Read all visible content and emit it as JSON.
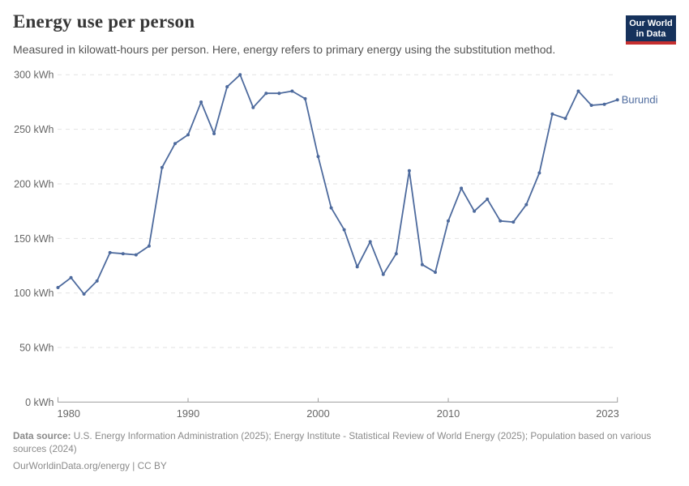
{
  "header": {
    "title": "Energy use per person",
    "subtitle": "Measured in kilowatt-hours per person. Here, energy refers to primary energy using the substitution method."
  },
  "logo": {
    "line1": "Our World",
    "line2": "in Data",
    "bg_color": "#16325c",
    "bar_color": "#c62f2f",
    "text_color": "#ffffff"
  },
  "chart_data": {
    "type": "line",
    "title": "Energy use per person",
    "unit": "kWh",
    "xlabel": "",
    "ylabel": "",
    "xlim": [
      1980,
      2023
    ],
    "ylim": [
      0,
      300
    ],
    "x_ticks": [
      1980,
      1990,
      2000,
      2010,
      2023
    ],
    "y_ticks": [
      0,
      50,
      100,
      150,
      200,
      250,
      300
    ],
    "y_tick_suffix": " kWh",
    "grid": "horizontal-dashed",
    "legend_position": "end-of-line-label",
    "entity_label": "Burundi",
    "series": [
      {
        "name": "Burundi",
        "color": "#4d6a9d",
        "x": [
          1980,
          1981,
          1982,
          1983,
          1984,
          1985,
          1986,
          1987,
          1988,
          1989,
          1990,
          1991,
          1992,
          1993,
          1994,
          1995,
          1996,
          1997,
          1998,
          1999,
          2000,
          2001,
          2002,
          2003,
          2004,
          2005,
          2006,
          2007,
          2008,
          2009,
          2010,
          2011,
          2012,
          2013,
          2014,
          2015,
          2016,
          2017,
          2018,
          2019,
          2020,
          2021,
          2022,
          2023
        ],
        "values": [
          105,
          114,
          99,
          111,
          137,
          136,
          135,
          143,
          215,
          237,
          245,
          275,
          246,
          289,
          300,
          270,
          283,
          283,
          285,
          278,
          225,
          178,
          158,
          124,
          147,
          117,
          136,
          212,
          126,
          119,
          166,
          196,
          175,
          186,
          166,
          165,
          181,
          210,
          264,
          260,
          285,
          272,
          273,
          277
        ]
      }
    ]
  },
  "colors": {
    "grid": "#e2e2e2",
    "axis": "#9e9e9e",
    "tick_label": "#666666",
    "title": "#373737",
    "subtitle": "#555555",
    "footer": "#8a8a8a"
  },
  "footer": {
    "datasource_label": "Data source:",
    "datasource_text": " U.S. Energy Information Administration (2025); Energy Institute - Statistical Review of World Energy (2025); Population based on various sources (2024)",
    "license_text": "OurWorldinData.org/energy | CC BY"
  }
}
